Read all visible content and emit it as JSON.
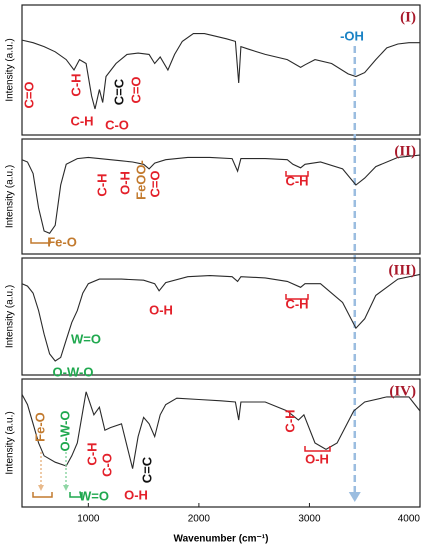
{
  "chart_data": [
    {
      "type": "line",
      "label": "(I)",
      "ylabel": "Intensity (a.u.)",
      "xlim": [
        400,
        4000
      ],
      "ylim": [
        0,
        100
      ],
      "color": "#2a2a2a",
      "x": [
        400,
        500,
        600,
        700,
        800,
        870,
        920,
        980,
        1030,
        1060,
        1100,
        1130,
        1160,
        1250,
        1350,
        1450,
        1550,
        1600,
        1650,
        1720,
        1780,
        1850,
        1950,
        2050,
        2150,
        2250,
        2330,
        2360,
        2380,
        2450,
        2600,
        2800,
        2920,
        2960,
        3050,
        3200,
        3350,
        3420,
        3500,
        3600,
        3700,
        3800,
        3900,
        4000
      ],
      "values": [
        73,
        71,
        68,
        64,
        58,
        50,
        58,
        55,
        30,
        20,
        35,
        25,
        45,
        55,
        62,
        63,
        62,
        55,
        60,
        50,
        62,
        72,
        78,
        78,
        76,
        74,
        72,
        40,
        68,
        66,
        62,
        58,
        52,
        54,
        58,
        55,
        47,
        45,
        48,
        58,
        67,
        70,
        71,
        71
      ],
      "reference_line": 3410,
      "annotations": [
        {
          "text": "C=O",
          "color": "#e3202a"
        },
        {
          "text": "C-H",
          "color": "#e3202a"
        },
        {
          "text": "C-H",
          "color": "#e3202a"
        },
        {
          "text": "C-O",
          "color": "#e3202a"
        },
        {
          "text": "C=C",
          "color": "#111111"
        },
        {
          "text": "C=O",
          "color": "#e3202a"
        },
        {
          "text": "-OH",
          "color": "#1a82c4"
        }
      ]
    },
    {
      "type": "line",
      "label": "(II)",
      "ylabel": "Intensity (a.u.)",
      "xlim": [
        400,
        4000
      ],
      "ylim": [
        0,
        100
      ],
      "color": "#2a2a2a",
      "x": [
        400,
        450,
        500,
        550,
        600,
        650,
        700,
        750,
        800,
        900,
        1000,
        1100,
        1200,
        1300,
        1400,
        1500,
        1550,
        1600,
        1700,
        1900,
        2100,
        2300,
        2350,
        2380,
        2600,
        2800,
        2850,
        2920,
        2960,
        3100,
        3300,
        3420,
        3500,
        3600,
        3800,
        4000
      ],
      "values": [
        82,
        80,
        70,
        40,
        20,
        18,
        25,
        60,
        78,
        83,
        84,
        83,
        82,
        81,
        80,
        78,
        74,
        79,
        82,
        84,
        84,
        83,
        72,
        83,
        83,
        82,
        78,
        75,
        78,
        80,
        74,
        60,
        66,
        76,
        84,
        86
      ],
      "annotations": [
        {
          "text": "C-H",
          "color": "#e3202a"
        },
        {
          "text": "O-H",
          "color": "#e3202a"
        },
        {
          "text": "FeOO-",
          "color": "#c27a2e"
        },
        {
          "text": "C=O",
          "color": "#e3202a"
        },
        {
          "text": "C-H",
          "color": "#e3202a"
        },
        {
          "text": "Fe-O",
          "color": "#c27a2e"
        }
      ]
    },
    {
      "type": "line",
      "label": "(III)",
      "ylabel": "Intensity (a.u.)",
      "xlim": [
        400,
        4000
      ],
      "ylim": [
        0,
        100
      ],
      "color": "#2a2a2a",
      "x": [
        400,
        450,
        500,
        550,
        600,
        650,
        700,
        750,
        800,
        850,
        900,
        950,
        1000,
        1100,
        1300,
        1500,
        1600,
        1640,
        1700,
        1900,
        2100,
        2300,
        2350,
        2380,
        2600,
        2800,
        2920,
        2960,
        3100,
        3300,
        3420,
        3500,
        3600,
        3800,
        4000
      ],
      "values": [
        78,
        76,
        70,
        55,
        35,
        18,
        12,
        15,
        30,
        45,
        55,
        70,
        78,
        82,
        82,
        81,
        78,
        72,
        79,
        84,
        85,
        84,
        80,
        84,
        83,
        80,
        75,
        78,
        78,
        62,
        40,
        48,
        68,
        82,
        86
      ],
      "annotations": [
        {
          "text": "O-H",
          "color": "#e3202a"
        },
        {
          "text": "C-H",
          "color": "#e3202a"
        },
        {
          "text": "W=O",
          "color": "#1fa84e"
        },
        {
          "text": "O-W-O",
          "color": "#1fa84e"
        }
      ]
    },
    {
      "type": "line",
      "label": "(IV)",
      "ylabel": "Intensity (a.u.)",
      "xlim": [
        400,
        4000
      ],
      "ylim": [
        0,
        100
      ],
      "color": "#2a2a2a",
      "xticks": [
        1000,
        2000,
        3000,
        4000
      ],
      "xlabel": "Wavenumber (cm⁻¹)",
      "x": [
        400,
        450,
        500,
        550,
        600,
        700,
        800,
        850,
        900,
        920,
        950,
        980,
        1000,
        1050,
        1100,
        1150,
        1200,
        1300,
        1400,
        1450,
        1500,
        1550,
        1600,
        1650,
        1700,
        1800,
        2000,
        2200,
        2330,
        2360,
        2380,
        2600,
        2800,
        2900,
        2950,
        3050,
        3150,
        3250,
        3400,
        3500,
        3700,
        3900,
        4000
      ],
      "values": [
        88,
        80,
        65,
        50,
        40,
        35,
        32,
        40,
        50,
        60,
        75,
        90,
        85,
        72,
        78,
        60,
        62,
        65,
        30,
        55,
        70,
        65,
        55,
        72,
        80,
        85,
        84,
        83,
        82,
        68,
        82,
        82,
        75,
        68,
        72,
        50,
        45,
        50,
        75,
        82,
        86,
        86,
        75
      ],
      "annotations": [
        {
          "text": "Fe-O",
          "color": "#c27a2e"
        },
        {
          "text": "O-W-O",
          "color": "#1fa84e"
        },
        {
          "text": "W=O",
          "color": "#1fa84e"
        },
        {
          "text": "C-H",
          "color": "#e3202a"
        },
        {
          "text": "C-O",
          "color": "#e3202a"
        },
        {
          "text": "C=C",
          "color": "#111111"
        },
        {
          "text": "O-H",
          "color": "#e3202a"
        },
        {
          "text": "C-H",
          "color": "#e3202a"
        },
        {
          "text": "O-H",
          "color": "#e3202a"
        }
      ]
    }
  ]
}
